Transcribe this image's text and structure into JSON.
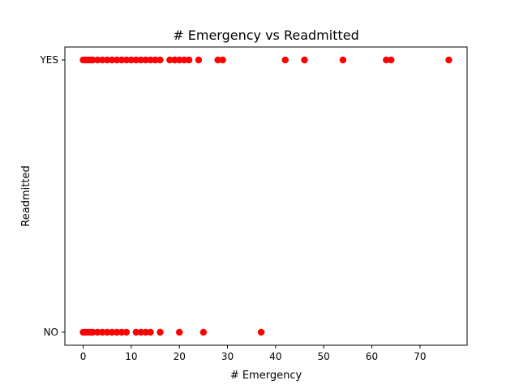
{
  "chart_data": {
    "type": "scatter",
    "title": "# Emergency vs Readmitted",
    "xlabel": "# Emergency",
    "ylabel": "Readmitted",
    "xlim": [
      -3.8,
      79.8
    ],
    "xticks": [
      0,
      10,
      20,
      30,
      40,
      50,
      60,
      70
    ],
    "y_categories": [
      "NO",
      "YES"
    ],
    "marker_color": "#ff0000",
    "grid": false,
    "series": [
      {
        "points": [
          {
            "x": 0,
            "y": "YES"
          },
          {
            "x": 0.5,
            "y": "YES"
          },
          {
            "x": 1,
            "y": "YES"
          },
          {
            "x": 1.5,
            "y": "YES"
          },
          {
            "x": 2,
            "y": "YES"
          },
          {
            "x": 3,
            "y": "YES"
          },
          {
            "x": 4,
            "y": "YES"
          },
          {
            "x": 5,
            "y": "YES"
          },
          {
            "x": 6,
            "y": "YES"
          },
          {
            "x": 7,
            "y": "YES"
          },
          {
            "x": 8,
            "y": "YES"
          },
          {
            "x": 9,
            "y": "YES"
          },
          {
            "x": 10,
            "y": "YES"
          },
          {
            "x": 11,
            "y": "YES"
          },
          {
            "x": 12,
            "y": "YES"
          },
          {
            "x": 13,
            "y": "YES"
          },
          {
            "x": 14,
            "y": "YES"
          },
          {
            "x": 15,
            "y": "YES"
          },
          {
            "x": 16,
            "y": "YES"
          },
          {
            "x": 18,
            "y": "YES"
          },
          {
            "x": 19,
            "y": "YES"
          },
          {
            "x": 20,
            "y": "YES"
          },
          {
            "x": 21,
            "y": "YES"
          },
          {
            "x": 22,
            "y": "YES"
          },
          {
            "x": 24,
            "y": "YES"
          },
          {
            "x": 28,
            "y": "YES"
          },
          {
            "x": 29,
            "y": "YES"
          },
          {
            "x": 42,
            "y": "YES"
          },
          {
            "x": 46,
            "y": "YES"
          },
          {
            "x": 54,
            "y": "YES"
          },
          {
            "x": 63,
            "y": "YES"
          },
          {
            "x": 64,
            "y": "YES"
          },
          {
            "x": 76,
            "y": "YES"
          },
          {
            "x": 0,
            "y": "NO"
          },
          {
            "x": 0.5,
            "y": "NO"
          },
          {
            "x": 1,
            "y": "NO"
          },
          {
            "x": 1.5,
            "y": "NO"
          },
          {
            "x": 2,
            "y": "NO"
          },
          {
            "x": 3,
            "y": "NO"
          },
          {
            "x": 4,
            "y": "NO"
          },
          {
            "x": 5,
            "y": "NO"
          },
          {
            "x": 6,
            "y": "NO"
          },
          {
            "x": 7,
            "y": "NO"
          },
          {
            "x": 8,
            "y": "NO"
          },
          {
            "x": 9,
            "y": "NO"
          },
          {
            "x": 11,
            "y": "NO"
          },
          {
            "x": 12,
            "y": "NO"
          },
          {
            "x": 13,
            "y": "NO"
          },
          {
            "x": 14,
            "y": "NO"
          },
          {
            "x": 16,
            "y": "NO"
          },
          {
            "x": 20,
            "y": "NO"
          },
          {
            "x": 25,
            "y": "NO"
          },
          {
            "x": 37,
            "y": "NO"
          }
        ]
      }
    ]
  }
}
